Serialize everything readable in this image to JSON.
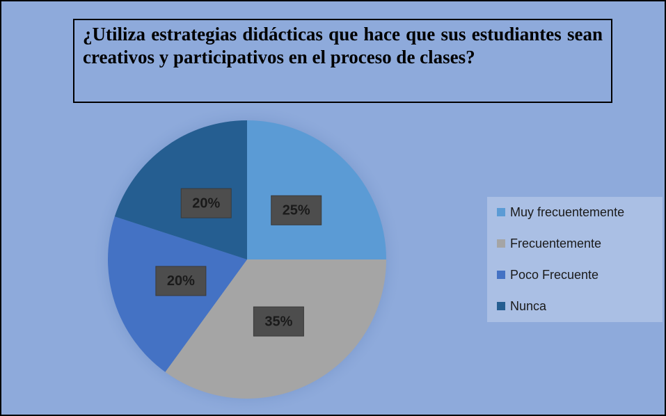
{
  "chart_data": {
    "type": "pie",
    "title": "¿Utiliza estrategias didácticas que hace que sus estudiantes sean creativos y participativos en el proceso de clases?",
    "categories": [
      "Muy frecuentemente",
      "Frecuentemente",
      "Poco Frecuente",
      "Nunca"
    ],
    "values": [
      25,
      35,
      20,
      20
    ],
    "value_labels": [
      "25%",
      "35%",
      "20%",
      "20%"
    ],
    "colors": [
      "#5b9bd5",
      "#a5a5a5",
      "#4472c4",
      "#255e91"
    ],
    "legend": "right"
  }
}
